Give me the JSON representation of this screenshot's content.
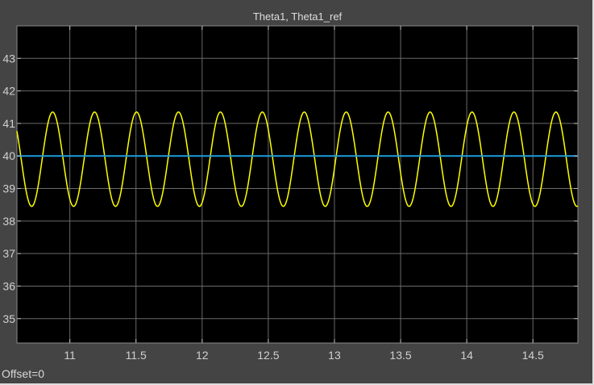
{
  "window": {
    "offset_label": "Offset=0"
  },
  "chart_data": {
    "type": "line",
    "title": "Theta1, Theta1_ref",
    "xlabel": "",
    "ylabel": "",
    "xlim": [
      10.6,
      14.84
    ],
    "ylim": [
      34.25,
      44.0
    ],
    "xticks": [
      11,
      11.5,
      12,
      12.5,
      13,
      13.5,
      14,
      14.5
    ],
    "xtick_labels": [
      "11",
      "11.5",
      "12",
      "12.5",
      "13",
      "13.5",
      "14",
      "14.5"
    ],
    "yticks": [
      35,
      36,
      37,
      38,
      39,
      40,
      41,
      42,
      43
    ],
    "ytick_labels": [
      "35",
      "36",
      "37",
      "38",
      "39",
      "40",
      "41",
      "42",
      "43"
    ],
    "grid": true,
    "background": "#000000",
    "series": [
      {
        "color": "#ffff00",
        "shape": "sinusoid",
        "mean": 39.9,
        "amplitude": 1.45,
        "period": 0.317,
        "first_peak_x": 10.87,
        "x": [
          10.6,
          10.72,
          10.87,
          11.03,
          11.19,
          11.35,
          11.5,
          11.66,
          11.82,
          11.98,
          12.13,
          12.29,
          12.45,
          12.61,
          12.77,
          12.93,
          13.08,
          13.24,
          13.4,
          13.56,
          13.71,
          13.87,
          14.03,
          14.19,
          14.35,
          14.5,
          14.66,
          14.84
        ],
        "y": [
          41.0,
          38.4,
          41.3,
          38.45,
          41.35,
          38.45,
          41.35,
          38.45,
          41.35,
          38.45,
          41.35,
          38.45,
          41.35,
          38.45,
          41.35,
          38.45,
          41.35,
          38.45,
          41.35,
          38.45,
          41.35,
          38.45,
          41.4,
          38.45,
          41.4,
          38.5,
          41.4,
          38.9
        ]
      },
      {
        "color": "#1f9bde",
        "x": [
          10.6,
          14.84
        ],
        "y": [
          40.0,
          40.0
        ]
      }
    ]
  }
}
